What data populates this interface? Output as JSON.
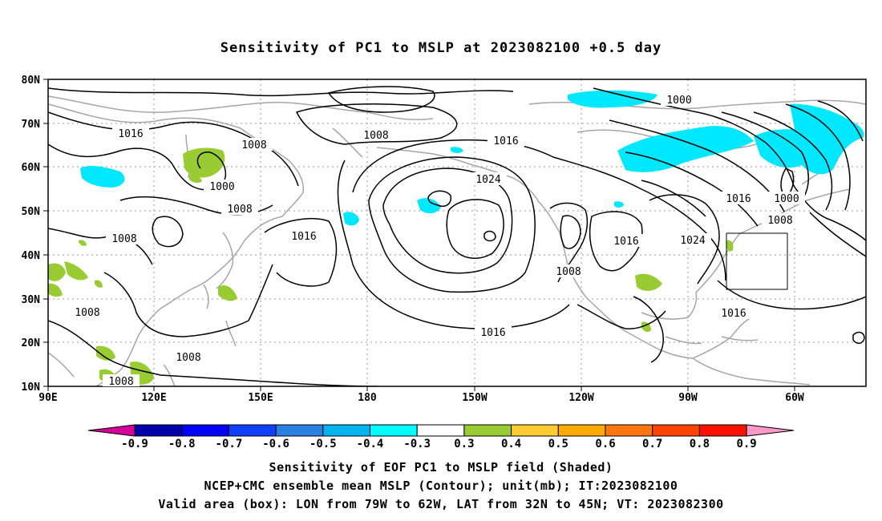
{
  "title": "Sensitivity of PC1 to MSLP at 2023082100 +0.5 day",
  "map": {
    "lat_labels": [
      "80N",
      "70N",
      "60N",
      "50N",
      "40N",
      "30N",
      "20N",
      "10N"
    ],
    "lon_labels": [
      "90E",
      "120E",
      "150E",
      "180",
      "150W",
      "120W",
      "90W",
      "60W"
    ],
    "contour_labels": [
      "1016",
      "1008",
      "1000",
      "1008",
      "1008",
      "1016",
      "1008",
      "1008",
      "1008",
      "1008",
      "1008",
      "1024",
      "1016",
      "1016",
      "1016",
      "1008",
      "1016",
      "1024",
      "1000",
      "1016",
      "1000",
      "1008",
      "1016"
    ],
    "valid_box": {
      "lon_from": "79W",
      "lon_to": "62W",
      "lat_from": "32N",
      "lat_to": "45N"
    },
    "colors": {
      "land": "#a6a6a6",
      "contour": "#000000",
      "grid": "#999999",
      "pos_shade": "#99cc33",
      "neg_shade": "#00e8ff"
    }
  },
  "colorbar": {
    "labels": [
      "-0.9",
      "-0.8",
      "-0.7",
      "-0.6",
      "-0.5",
      "-0.4",
      "-0.3",
      "0.3",
      "0.4",
      "0.5",
      "0.6",
      "0.7",
      "0.8",
      "0.9"
    ],
    "colors": [
      "#0000aa",
      "#0000ff",
      "#1040ff",
      "#2a7fe0",
      "#00b4f0",
      "#00ffff",
      "#ffffff",
      "#99cc33",
      "#ffcc33",
      "#ffaa00",
      "#ff7711",
      "#ff4400",
      "#ff1100"
    ],
    "low_color": "#d4009a",
    "high_color": "#ff99cc"
  },
  "captions": [
    "Sensitivity of EOF PC1 to MSLP field (Shaded)",
    "NCEP+CMC ensemble mean MSLP (Contour); unit(mb); IT:2023082100",
    "Valid area (box): LON from 79W to 62W, LAT from 32N to 45N; VT: 2023082300"
  ]
}
